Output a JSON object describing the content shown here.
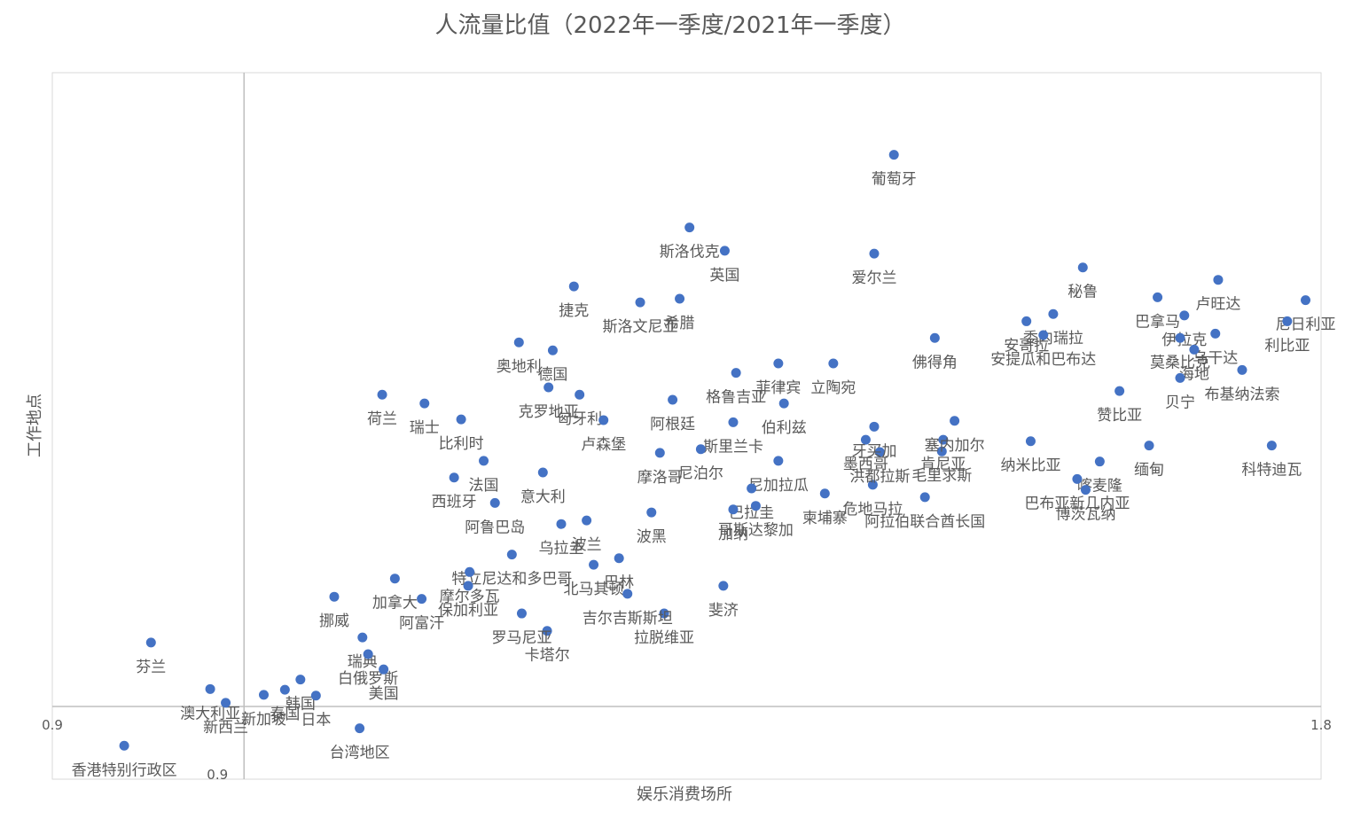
{
  "chart_data": {
    "type": "scatter",
    "title": "人流量比值（2022年一季度/2021年一季度）",
    "x_label": "娱乐消费场所",
    "y_label": "工作地点",
    "color": "#4472c4",
    "xlim": [
      0.9,
      1.8
    ],
    "ylim": [
      0.9,
      1.872
    ],
    "xticks": [
      0.9,
      1.8
    ],
    "yticks": [
      0.9
    ],
    "y_axis_crosses_x": 1.036,
    "x_axis_crosses_y": 1.0,
    "labels": [
      "葡萄牙",
      "斯洛伐克",
      "英国",
      "爱尔兰",
      "捷克",
      "斯洛文尼亚",
      "希腊",
      "秘鲁",
      "卢旺达",
      "巴拿马",
      "尼日利亚",
      "利比亚",
      "伊拉克",
      "委内瑞拉",
      "安哥拉",
      "莫桑比克",
      "乌干达",
      "海地",
      "贝宁",
      "布基纳法索",
      "奥地利",
      "德国",
      "荷兰",
      "瑞士",
      "克罗地亚",
      "匈牙利",
      "比利时",
      "卢森堡",
      "法国",
      "西班牙",
      "阿鲁巴岛",
      "菲律宾",
      "立陶宛",
      "格鲁吉亚",
      "阿根廷",
      "伯利兹",
      "斯里兰卡",
      "尼泊尔",
      "肯尼亚",
      "赞比亚",
      "纳米比亚",
      "缅甸",
      "科特迪瓦",
      "喀麦隆",
      "巴布亚新几内亚",
      "博茨瓦纳",
      "摩洛哥",
      "意大利",
      "波黑",
      "乌拉圭",
      "波兰",
      "特立尼达和多巴哥",
      "摩尔多瓦",
      "北马其顿",
      "巴林",
      "保加利亚",
      "加拿大",
      "阿富汗",
      "挪威",
      "瑞典",
      "白俄罗斯",
      "芬兰",
      "韩国",
      "泰国",
      "日本",
      "美国",
      "澳大利亚",
      "新西兰",
      "新加坡",
      "台湾地区",
      "香港特别行政区",
      "卡塔尔",
      "罗马尼亚",
      "拉脱维亚",
      "吉尔吉斯斯坦",
      "斐济",
      "尼加拉瓜",
      "巴拉圭",
      "加纳",
      "哥斯达黎加",
      "柬埔寨",
      "阿拉伯联合酋长国",
      "毛里求斯",
      "塞内加尔",
      "佛得角",
      "安提瓜和巴布达",
      "危地马拉",
      "墨西哥",
      "洪都拉斯",
      "牙买加"
    ],
    "x": [
      1.497,
      1.352,
      1.377,
      1.483,
      1.27,
      1.317,
      1.345,
      1.631,
      1.727,
      1.684,
      1.789,
      1.776,
      1.703,
      1.61,
      1.591,
      1.7,
      1.725,
      1.71,
      1.7,
      1.744,
      1.231,
      1.255,
      1.134,
      1.164,
      1.252,
      1.274,
      1.19,
      1.291,
      1.206,
      1.185,
      1.214,
      1.415,
      1.454,
      1.385,
      1.34,
      1.419,
      1.383,
      1.36,
      1.532,
      1.657,
      1.594,
      1.678,
      1.765,
      1.643,
      1.627,
      1.633,
      1.331,
      1.248,
      1.325,
      1.261,
      1.279,
      1.226,
      1.196,
      1.284,
      1.302,
      1.195,
      1.143,
      1.162,
      1.1,
      1.12,
      1.124,
      0.97,
      1.076,
      1.065,
      1.087,
      1.135,
      1.012,
      1.023,
      1.05,
      1.118,
      0.951,
      1.251,
      1.233,
      1.334,
      1.308,
      1.376,
      1.415,
      1.396,
      1.383,
      1.399,
      1.448,
      1.519,
      1.531,
      1.54,
      1.526,
      1.603,
      1.482,
      1.477,
      1.487,
      1.483
    ],
    "values": [
      1.759,
      1.659,
      1.627,
      1.623,
      1.578,
      1.556,
      1.561,
      1.604,
      1.587,
      1.563,
      1.559,
      1.53,
      1.538,
      1.54,
      1.53,
      1.507,
      1.513,
      1.491,
      1.452,
      1.463,
      1.501,
      1.49,
      1.429,
      1.417,
      1.439,
      1.429,
      1.395,
      1.394,
      1.338,
      1.315,
      1.28,
      1.472,
      1.472,
      1.459,
      1.422,
      1.417,
      1.391,
      1.354,
      1.367,
      1.434,
      1.365,
      1.359,
      1.359,
      1.337,
      1.313,
      1.298,
      1.349,
      1.322,
      1.267,
      1.251,
      1.256,
      1.209,
      1.185,
      1.195,
      1.204,
      1.166,
      1.176,
      1.148,
      1.151,
      1.095,
      1.072,
      1.088,
      1.037,
      1.023,
      1.015,
      1.051,
      1.024,
      1.005,
      1.016,
      0.97,
      0.946,
      1.104,
      1.128,
      1.128,
      1.155,
      1.166,
      1.338,
      1.3,
      1.271,
      1.276,
      1.293,
      1.288,
      1.351,
      1.393,
      1.507,
      1.511,
      1.305,
      1.367,
      1.35,
      1.385
    ]
  }
}
